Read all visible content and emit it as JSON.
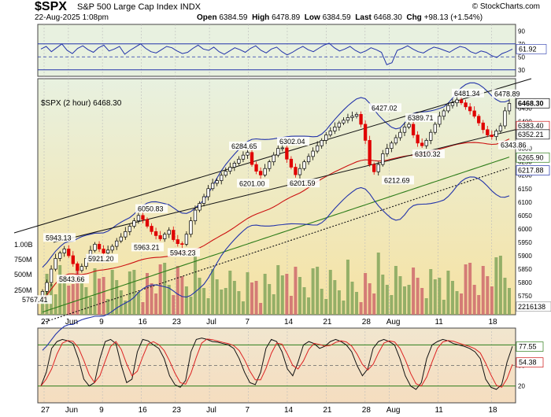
{
  "header": {
    "symbol": "$SPX",
    "name": "S&P 500 Large Cap Index",
    "exchange": "INDX",
    "date": "22-Aug-2025 1:08pm",
    "brand": "© StockCharts.com",
    "open_label": "Open",
    "open": "6384.59",
    "high_label": "High",
    "high": "6478.89",
    "low_label": "Low",
    "low": "6384.59",
    "last_label": "Last",
    "last": "6468.30",
    "chg_label": "Chg",
    "chg": "+98.13 (+1.54%)"
  },
  "colors": {
    "bg_top": "#e6f0dc",
    "bg_bottom": "#f5e1a5",
    "up": "#000000",
    "down": "#e00000",
    "ma_blue": "#2233aa",
    "ma_red": "#cc1111",
    "ma_green": "#2e7d1a",
    "ma_black": "#111111",
    "rsi_line": "#2233aa",
    "vol_up": "#8aa860",
    "vol_down": "#d07070"
  },
  "chart_data": [
    {
      "type": "line",
      "panel": "RSI",
      "ylim": [
        20,
        100
      ],
      "yticks": [
        "90",
        "70",
        "50",
        "30"
      ],
      "current_label": "61.92",
      "ref_lines": [
        70,
        50,
        30
      ],
      "values": [
        62,
        66,
        58,
        64,
        70,
        60,
        55,
        63,
        67,
        61,
        57,
        64,
        68,
        59,
        62,
        66,
        54,
        60,
        65,
        70,
        63,
        58,
        56,
        61,
        66,
        64,
        59,
        55,
        57,
        63,
        68,
        62,
        60,
        65,
        58,
        54,
        59,
        64,
        61,
        57,
        63,
        67,
        60,
        56,
        62,
        65,
        58,
        53,
        57,
        62,
        66,
        61,
        58,
        63,
        68,
        71,
        64,
        59,
        62,
        66,
        60,
        56,
        59,
        64,
        61,
        57,
        38,
        41,
        60,
        63,
        67,
        62,
        58,
        56,
        61,
        65,
        63,
        60,
        57,
        62,
        66,
        64,
        58,
        55,
        59,
        57,
        52,
        49,
        55,
        58,
        61.92
      ],
      "xlabels": []
    },
    {
      "type": "candlestick",
      "panel": "price",
      "label": "$SPX (2 hour) 6468.30",
      "ylim": [
        5680,
        6560
      ],
      "yticks": [
        "6450",
        "6400",
        "6350",
        "6300",
        "6250",
        "6200",
        "6150",
        "6100",
        "6050",
        "6000",
        "5950",
        "5900",
        "5850",
        "5800",
        "5750",
        "5700"
      ],
      "xlabels": [
        "27",
        "Jun",
        "9",
        "16",
        "23",
        "Jul",
        "7",
        "14",
        "21",
        "28",
        "Aug",
        "11",
        "18"
      ],
      "closes": [
        5767,
        5800,
        5850,
        5890,
        5910,
        5925,
        5900,
        5870,
        5845,
        5860,
        5890,
        5920,
        5943,
        5925,
        5910,
        5921,
        5935,
        5955,
        5970,
        5990,
        6010,
        6030,
        6050,
        6035,
        6010,
        5990,
        5975,
        5963,
        5980,
        5995,
        5960,
        5945,
        5943,
        5980,
        6030,
        6070,
        6095,
        6120,
        6150,
        6170,
        6180,
        6200,
        6215,
        6230,
        6245,
        6260,
        6275,
        6285,
        6240,
        6215,
        6201,
        6225,
        6250,
        6275,
        6300,
        6302,
        6260,
        6230,
        6202,
        6225,
        6250,
        6270,
        6290,
        6310,
        6330,
        6350,
        6365,
        6380,
        6395,
        6405,
        6415,
        6420,
        6427,
        6390,
        6330,
        6240,
        6213,
        6240,
        6280,
        6300,
        6320,
        6340,
        6360,
        6380,
        6390,
        6350,
        6320,
        6310,
        6330,
        6360,
        6390,
        6420,
        6440,
        6460,
        6470,
        6481,
        6470,
        6455,
        6440,
        6420,
        6395,
        6370,
        6350,
        6344,
        6365,
        6384,
        6440,
        6468
      ],
      "annotations": [
        {
          "label": "5943.13",
          "value": 5943.13
        },
        {
          "label": "5843.66",
          "value": 5843.66
        },
        {
          "label": "5921.20",
          "value": 5921.2
        },
        {
          "label": "6050.83",
          "value": 6050.83
        },
        {
          "label": "5963.21",
          "value": 5963.21
        },
        {
          "label": "5943.23",
          "value": 5943.23
        },
        {
          "label": "6284.65",
          "value": 6284.65
        },
        {
          "label": "6201.00",
          "value": 6201
        },
        {
          "label": "6302.04",
          "value": 6302.04
        },
        {
          "label": "6201.59",
          "value": 6201.59
        },
        {
          "label": "6427.02",
          "value": 6427.02
        },
        {
          "label": "6212.69",
          "value": 6212.69
        },
        {
          "label": "6389.71",
          "value": 6389.71
        },
        {
          "label": "6310.32",
          "value": 6310.32
        },
        {
          "label": "6481.34",
          "value": 6481.34
        },
        {
          "label": "6478.89",
          "value": 6478.89
        },
        {
          "label": "6343.86",
          "value": 6343.86
        },
        {
          "label": "5767.41",
          "value": 5767.41
        }
      ],
      "right_labels": [
        "6468.30",
        "6383.40",
        "6352.21",
        "6265.90",
        "6217.88"
      ],
      "volume_ticks": [
        "1.00B",
        "750M",
        "500M",
        "250M"
      ],
      "volume_current": "2216138"
    },
    {
      "type": "line",
      "panel": "Stochastic",
      "ylim": [
        0,
        100
      ],
      "current_labels": [
        "77.55",
        "54.38"
      ],
      "ref_lines": [
        80,
        50,
        20
      ],
      "xlabels": [
        "27",
        "Jun",
        "9",
        "16",
        "23",
        "Jul",
        "7",
        "14",
        "21",
        "28",
        "Aug",
        "11",
        "18"
      ],
      "values": [
        20,
        40,
        75,
        85,
        88,
        86,
        82,
        60,
        30,
        20,
        25,
        60,
        85,
        88,
        82,
        50,
        25,
        30,
        70,
        88,
        86,
        80,
        75,
        60,
        35,
        22,
        18,
        28,
        70,
        88,
        90,
        88,
        85,
        84,
        82,
        80,
        75,
        60,
        40,
        25,
        22,
        40,
        75,
        88,
        85,
        70,
        45,
        35,
        55,
        80,
        85,
        82,
        75,
        78,
        85,
        88,
        85,
        80,
        70,
        50,
        35,
        45,
        75,
        85,
        88,
        85,
        80,
        60,
        35,
        20,
        15,
        25,
        60,
        80,
        85,
        88,
        86,
        82,
        80,
        78,
        75,
        70,
        60,
        30,
        18,
        15,
        22,
        55,
        78
      ]
    }
  ]
}
